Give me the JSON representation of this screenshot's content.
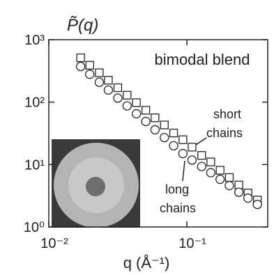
{
  "chart_data": {
    "type": "scatter",
    "log_x": true,
    "log_y": true,
    "ylabel": "P̃(q)",
    "xlabel": "q (Å⁻¹)",
    "annotations": [
      "bimodal blend",
      "short",
      "chains",
      "long",
      "chains"
    ],
    "xlim": [
      0.01,
      0.385
    ],
    "ylim": [
      1,
      1000
    ],
    "xticks": [
      {
        "value": 0.01,
        "label": "10⁻²"
      },
      {
        "value": 0.1,
        "label": "10⁻¹"
      }
    ],
    "yticks": [
      {
        "value": 1,
        "label": "10⁰"
      },
      {
        "value": 10,
        "label": "10¹"
      },
      {
        "value": 100,
        "label": "10²"
      },
      {
        "value": 1000,
        "label": "10³"
      }
    ],
    "series": [
      {
        "marker": "square",
        "color": "#222222",
        "x": [
          0.017,
          0.0198,
          0.0232,
          0.027,
          0.0316,
          0.0369,
          0.0431,
          0.0504,
          0.0588,
          0.0687,
          0.0802,
          0.0936,
          0.109,
          0.128,
          0.149,
          0.174,
          0.203,
          0.238,
          0.277,
          0.324
        ],
        "values": [
          513,
          389,
          295,
          224,
          170,
          129,
          98,
          74,
          56,
          43,
          32,
          25,
          19,
          14,
          11,
          8.1,
          6.2,
          4.7,
          3.5,
          2.7
        ]
      },
      {
        "marker": "circle",
        "color": "#222222",
        "x": [
          0.017,
          0.0198,
          0.0232,
          0.027,
          0.0316,
          0.0369,
          0.0431,
          0.0504,
          0.0588,
          0.0687,
          0.0802,
          0.0936,
          0.109,
          0.128,
          0.149,
          0.174,
          0.203,
          0.238,
          0.277,
          0.324
        ],
        "values": [
          372,
          279,
          208,
          156,
          116,
          87,
          65,
          49,
          36,
          27,
          20,
          15,
          11.8,
          9.3,
          7.4,
          5.8,
          4.6,
          3.6,
          2.9,
          2.3
        ]
      }
    ]
  }
}
